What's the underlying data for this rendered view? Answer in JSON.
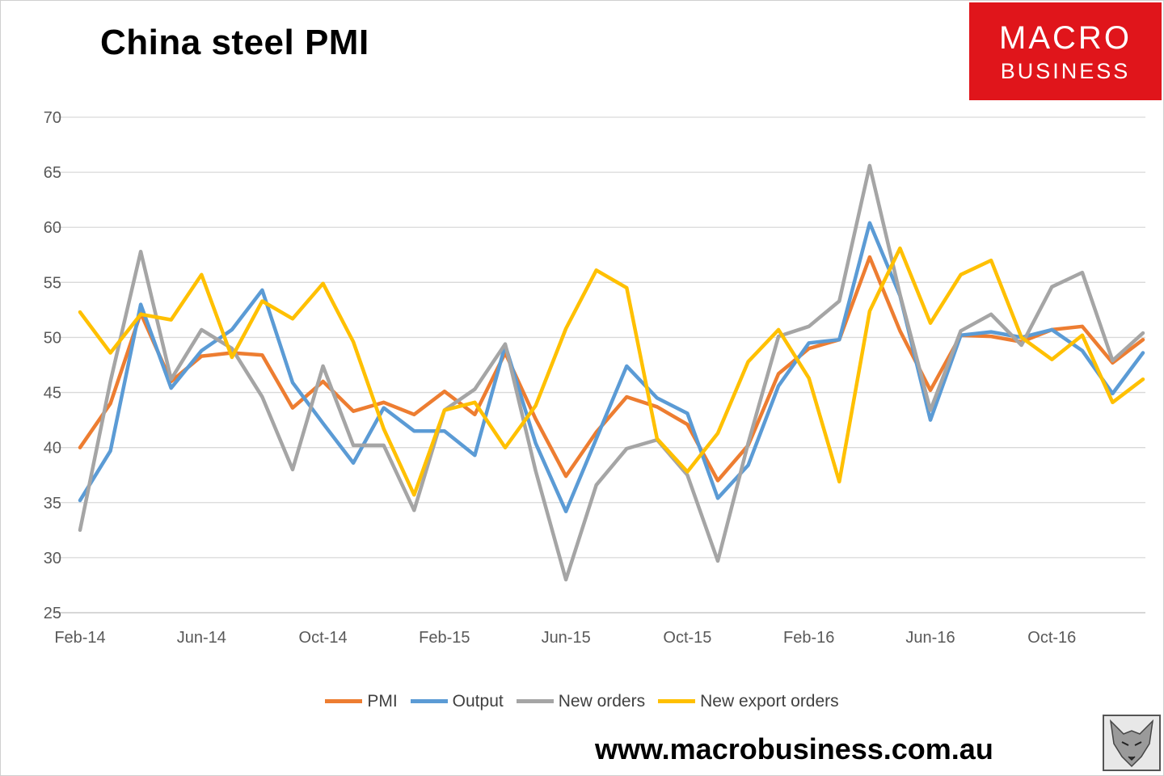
{
  "header": {
    "title": "China steel PMI"
  },
  "logo": {
    "line1": "MACRO",
    "line2": "BUSINESS"
  },
  "footer": {
    "url": "www.macrobusiness.com.au"
  },
  "chart_data": {
    "type": "line",
    "title": "China steel PMI",
    "xlabel": "",
    "ylabel": "",
    "ylim": [
      25,
      70
    ],
    "yticks": [
      "25",
      "30",
      "35",
      "40",
      "45",
      "50",
      "55",
      "60",
      "65",
      "70"
    ],
    "x": [
      "Feb-14",
      "Mar-14",
      "Apr-14",
      "May-14",
      "Jun-14",
      "Jul-14",
      "Aug-14",
      "Sep-14",
      "Oct-14",
      "Nov-14",
      "Dec-14",
      "Jan-15",
      "Feb-15",
      "Mar-15",
      "Apr-15",
      "May-15",
      "Jun-15",
      "Jul-15",
      "Aug-15",
      "Sep-15",
      "Oct-15",
      "Nov-15",
      "Dec-15",
      "Jan-16",
      "Feb-16",
      "Mar-16",
      "Apr-16",
      "May-16",
      "Jun-16",
      "Jul-16",
      "Aug-16",
      "Sep-16",
      "Oct-16",
      "Nov-16",
      "Dec-16",
      "Jan-17"
    ],
    "xtick_labels": [
      "Feb-14",
      "Jun-14",
      "Oct-14",
      "Feb-15",
      "Jun-15",
      "Oct-15",
      "Feb-16",
      "Jun-16",
      "Oct-16"
    ],
    "legend_position": "bottom",
    "grid": true,
    "series": [
      {
        "name": "PMI",
        "color": "#ed7d31",
        "values": [
          40.0,
          44.0,
          52.2,
          46.0,
          48.3,
          48.6,
          48.4,
          43.6,
          46.0,
          43.3,
          44.1,
          43.0,
          45.1,
          43.0,
          48.6,
          42.6,
          37.4,
          41.4,
          44.6,
          43.7,
          42.1,
          37.0,
          40.2,
          46.7,
          49.0,
          49.8,
          57.3,
          50.6,
          45.2,
          50.2,
          50.1,
          49.6,
          50.7,
          51.0,
          47.7,
          49.8
        ]
      },
      {
        "name": "Output",
        "color": "#5b9bd5",
        "values": [
          35.2,
          39.7,
          53.0,
          45.4,
          48.8,
          50.7,
          54.3,
          45.9,
          42.2,
          38.6,
          43.6,
          41.5,
          41.5,
          39.3,
          49.3,
          40.4,
          34.2,
          40.8,
          47.4,
          44.5,
          43.1,
          35.4,
          38.4,
          45.6,
          49.5,
          49.8,
          60.4,
          53.8,
          42.5,
          50.2,
          50.5,
          50.0,
          50.7,
          48.8,
          44.9,
          48.6
        ]
      },
      {
        "name": "New orders",
        "color": "#a5a5a5",
        "values": [
          32.5,
          46.0,
          57.8,
          46.2,
          50.7,
          49.0,
          44.6,
          38.0,
          47.4,
          40.2,
          40.2,
          34.3,
          43.4,
          45.3,
          49.4,
          37.9,
          28.0,
          36.6,
          39.9,
          40.7,
          37.5,
          29.7,
          40.4,
          50.1,
          51.0,
          53.3,
          65.6,
          53.9,
          43.4,
          50.6,
          52.1,
          49.3,
          54.6,
          55.9,
          47.9,
          50.4
        ]
      },
      {
        "name": "New export orders",
        "color": "#ffc000",
        "values": [
          52.3,
          48.6,
          52.1,
          51.6,
          55.7,
          48.2,
          53.3,
          51.7,
          54.9,
          49.6,
          41.7,
          35.7,
          43.4,
          44.1,
          40.0,
          43.8,
          50.8,
          56.1,
          54.5,
          40.8,
          37.8,
          41.3,
          47.8,
          50.7,
          46.3,
          36.9,
          52.4,
          58.1,
          51.3,
          55.7,
          57.0,
          50.0,
          48.0,
          50.2,
          44.1,
          46.2
        ]
      }
    ]
  }
}
